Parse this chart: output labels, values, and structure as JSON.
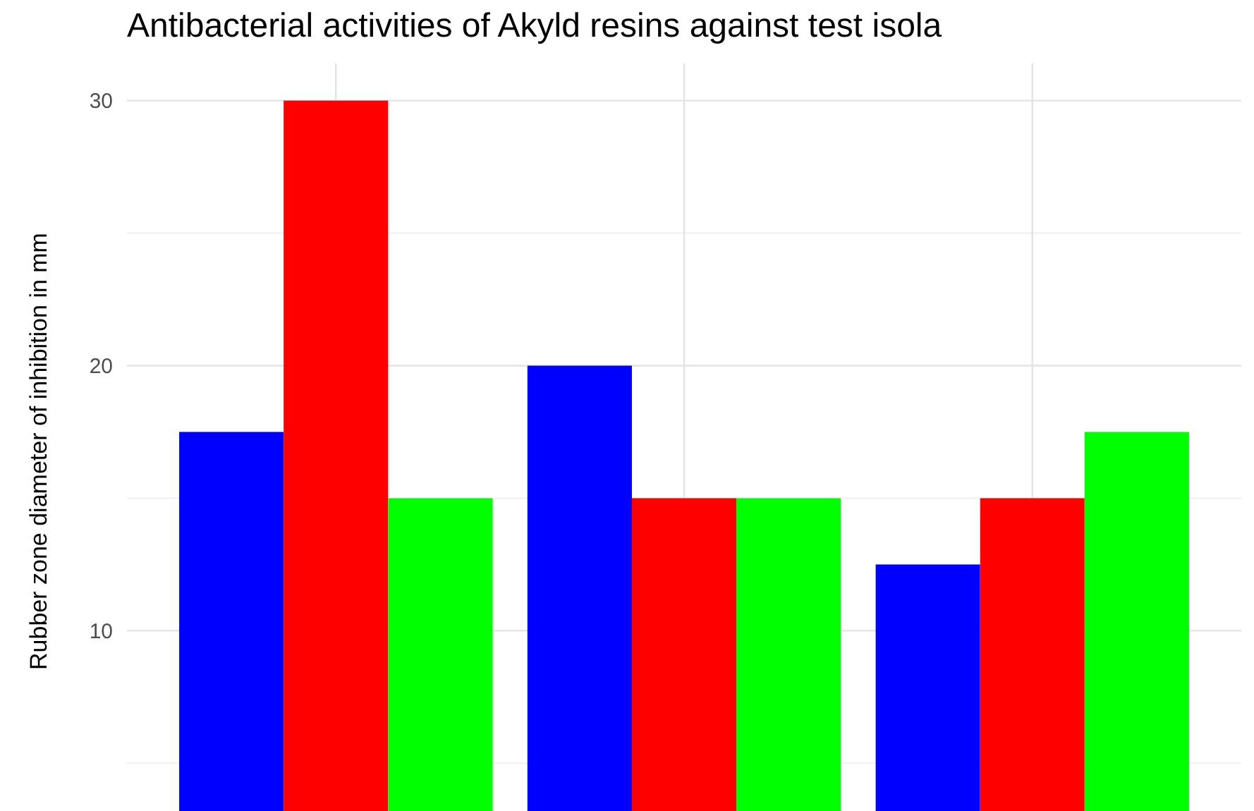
{
  "chart_data": {
    "type": "bar",
    "title": "Antibacterial activities of Akyld resins against test isola",
    "ylabel": "Rubber zone diameter of inhibition in mm",
    "categories": [
      null,
      null,
      null
    ],
    "series": [
      {
        "color": "#0000ff",
        "values": [
          17.5,
          20,
          12.5
        ]
      },
      {
        "color": "#ff0000",
        "values": [
          30,
          15,
          15
        ]
      },
      {
        "color": "#00ff00",
        "values": [
          15,
          15,
          17.5
        ]
      }
    ],
    "ylim": [
      3.2,
      31.4
    ],
    "yticks": [
      10,
      20,
      30
    ],
    "grid": true
  }
}
